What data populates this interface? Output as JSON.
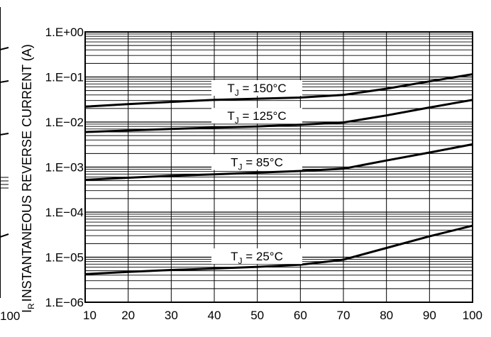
{
  "chart_data": {
    "type": "line",
    "ylabel": "INSTANTANEOUS REVERSE CURRENT (A)",
    "ylabel_prefix": "I",
    "ylabel_sub": "R",
    "y_scale": "log",
    "ylim": [
      1e-06,
      1
    ],
    "xlim": [
      10,
      100
    ],
    "x_ticks": [
      "10",
      "20",
      "30",
      "40",
      "50",
      "60",
      "70",
      "80",
      "90",
      "100"
    ],
    "y_ticks": [
      "1.E+00",
      "1.E−01",
      "1.E−02",
      "1.E−03",
      "1.E−04",
      "1.E−05",
      "1.E−06"
    ],
    "left_cut_text": "100",
    "grid": true,
    "series": [
      {
        "name": "T_J = 150°C",
        "label_main": "T",
        "label_sub": "J",
        "label_rest": " = 150°C",
        "x": [
          10,
          20,
          30,
          40,
          50,
          60,
          70,
          80,
          90,
          100
        ],
        "y": [
          0.022,
          0.025,
          0.028,
          0.031,
          0.033,
          0.035,
          0.04,
          0.055,
          0.08,
          0.115
        ]
      },
      {
        "name": "T_J = 125°C",
        "label_main": "T",
        "label_sub": "J",
        "label_rest": " = 125°C",
        "x": [
          10,
          20,
          30,
          40,
          50,
          60,
          70,
          80,
          90,
          100
        ],
        "y": [
          0.006,
          0.0065,
          0.007,
          0.0075,
          0.008,
          0.0087,
          0.0098,
          0.014,
          0.021,
          0.031
        ]
      },
      {
        "name": "T_J = 85°C",
        "label_main": "T",
        "label_sub": "J",
        "label_rest": " = 85°C",
        "x": [
          10,
          20,
          30,
          40,
          50,
          60,
          70,
          80,
          90,
          100
        ],
        "y": [
          0.00052,
          0.00058,
          0.00064,
          0.00069,
          0.00075,
          0.00082,
          0.00092,
          0.0014,
          0.0021,
          0.0032
        ]
      },
      {
        "name": "T_J = 25°C",
        "label_main": "T",
        "label_sub": "J",
        "label_rest": " = 25°C",
        "x": [
          10,
          20,
          30,
          40,
          50,
          60,
          70,
          80,
          90,
          100
        ],
        "y": [
          4.2e-06,
          4.7e-06,
          5.2e-06,
          5.6e-06,
          6.1e-06,
          6.8e-06,
          8.8e-06,
          1.6e-05,
          2.9e-05,
          5e-05
        ]
      }
    ]
  }
}
